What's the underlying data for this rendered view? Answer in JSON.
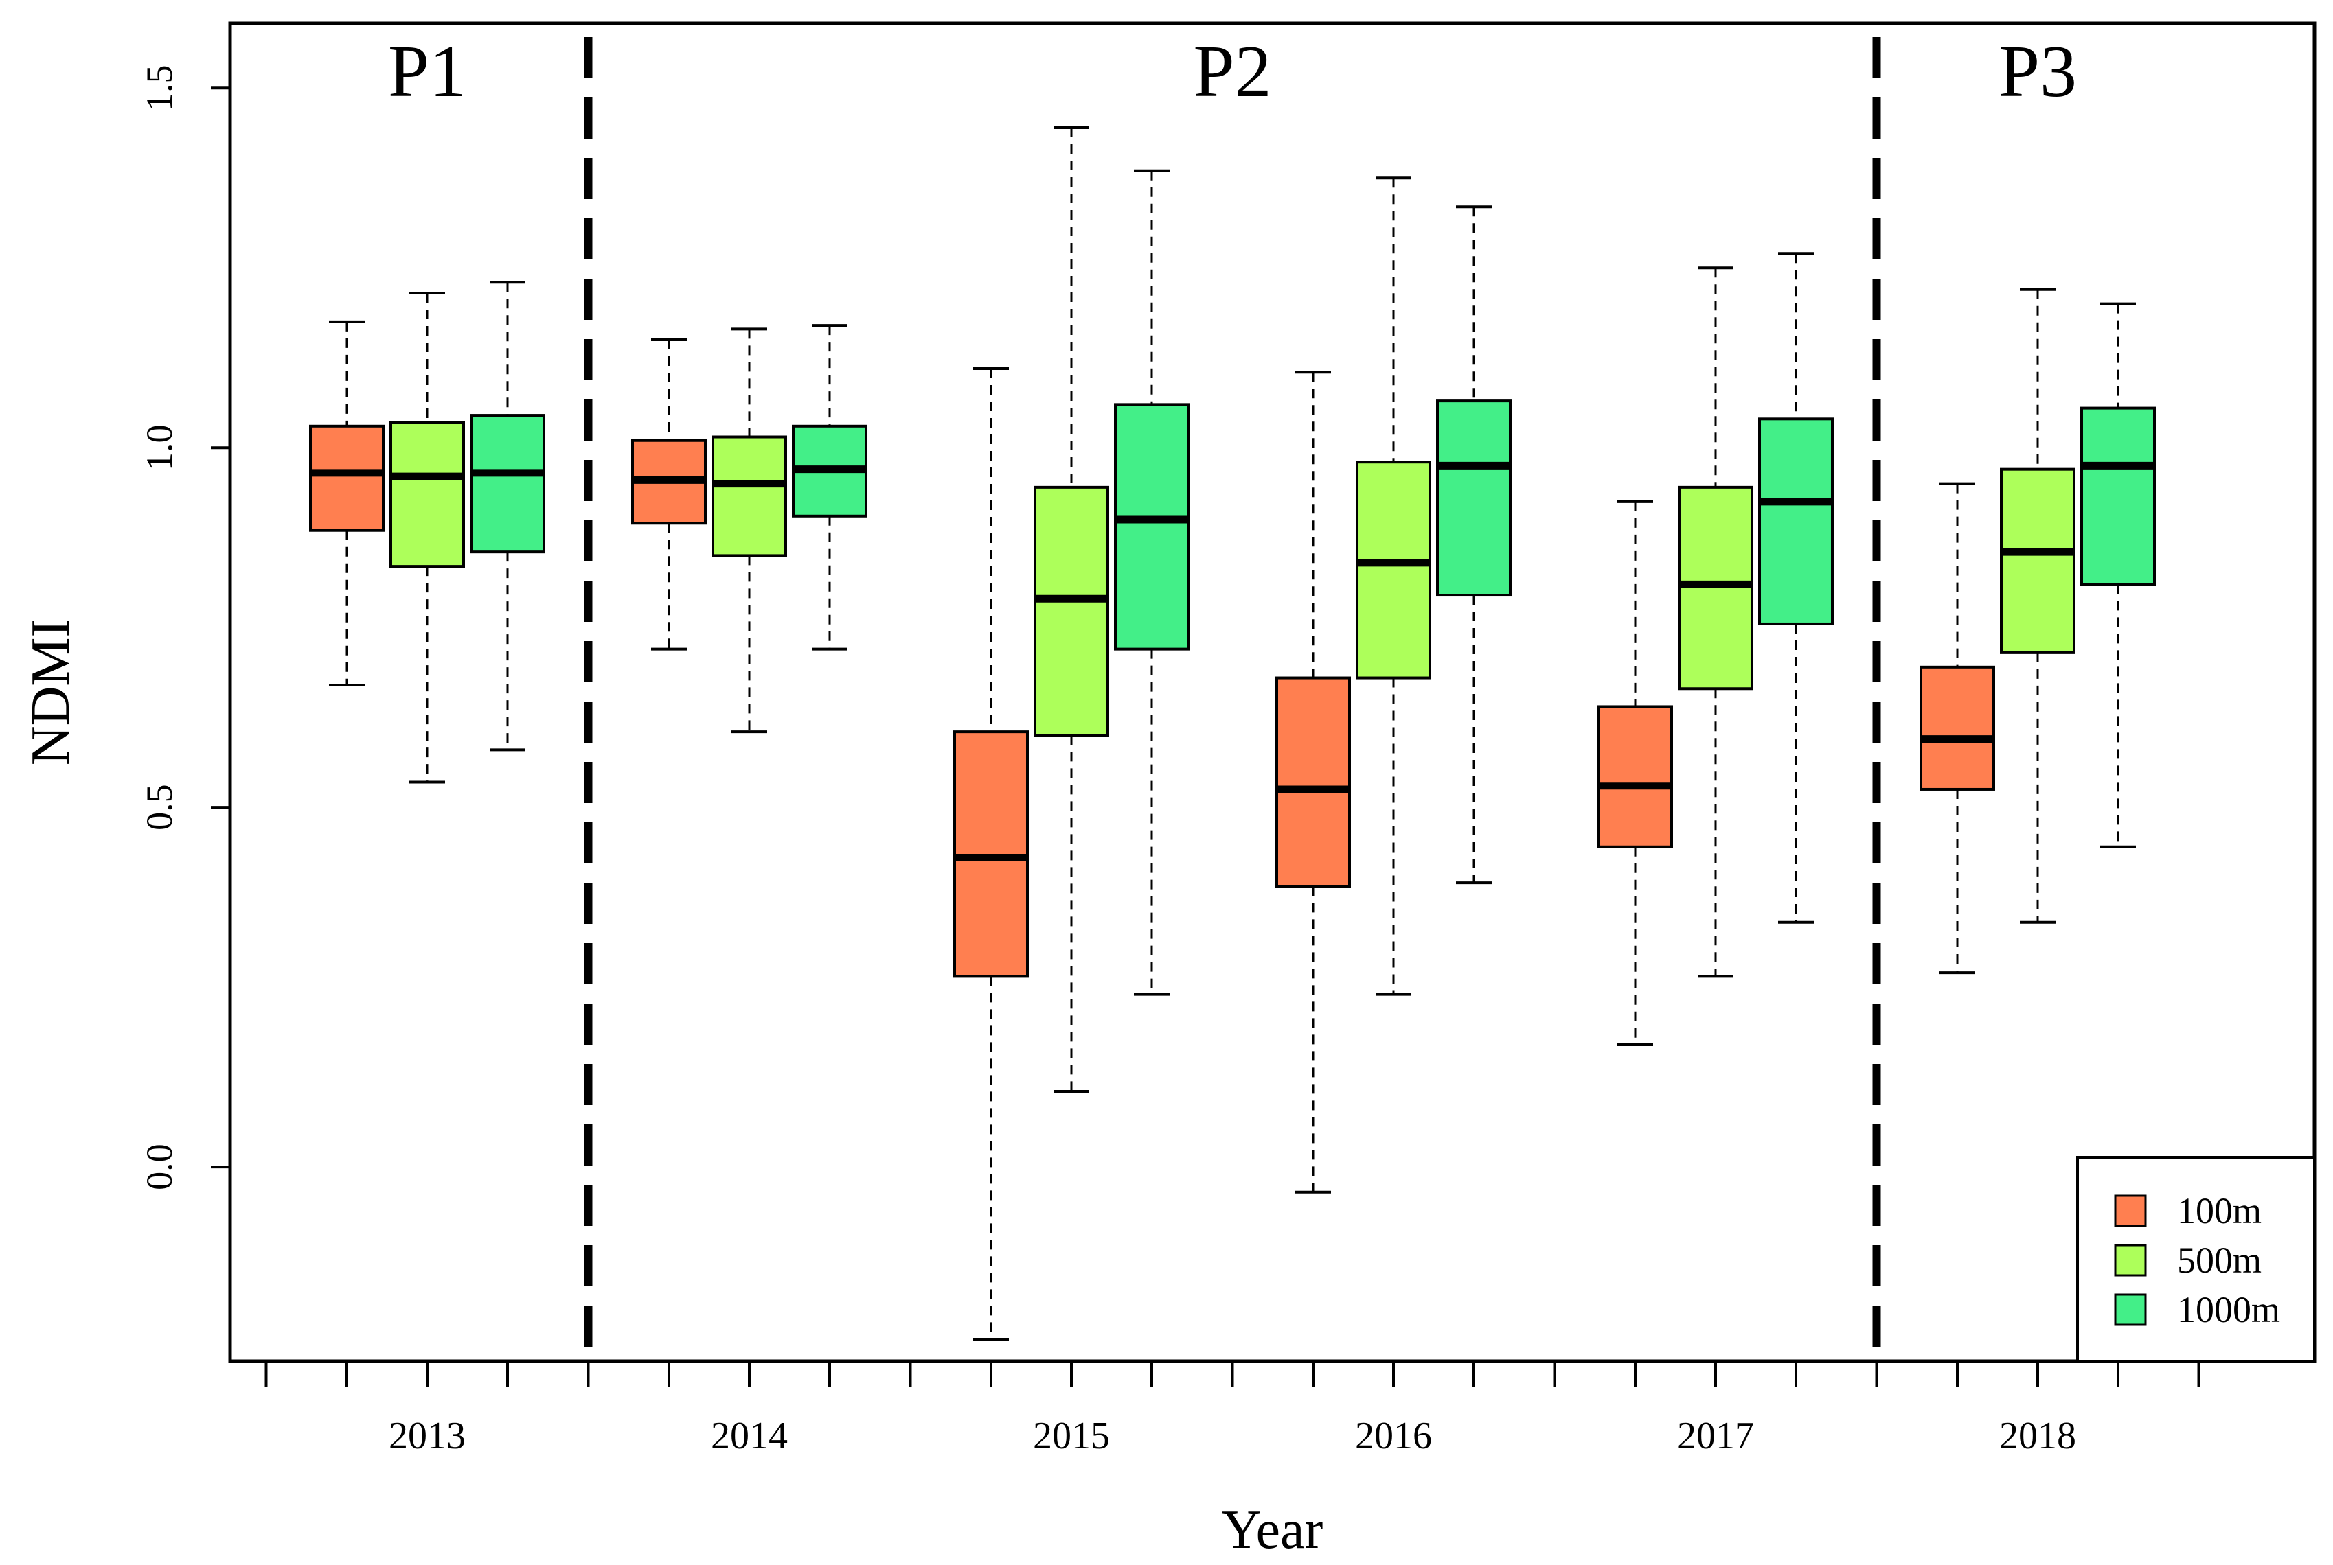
{
  "chart_data": {
    "type": "boxplot",
    "title": "",
    "xlabel": "Year",
    "ylabel": "NDMI",
    "ylim": [
      -0.27,
      1.59
    ],
    "yticks": [
      0.0,
      0.5,
      1.0,
      1.5
    ],
    "ytick_labels": [
      "0.0",
      "0.5",
      "1.0",
      "1.5"
    ],
    "categories": [
      "2013",
      "2014",
      "2015",
      "2016",
      "2017",
      "2018"
    ],
    "colors": {
      "100m": "#ff7f50",
      "500m": "#adff5a",
      "1000m": "#43ef88"
    },
    "series": [
      {
        "name": "100m",
        "boxes": [
          {
            "whisker_low": 0.67,
            "q1": 0.885,
            "median": 0.965,
            "q3": 1.03,
            "whisker_high": 1.175
          },
          {
            "whisker_low": 0.72,
            "q1": 0.895,
            "median": 0.955,
            "q3": 1.01,
            "whisker_high": 1.15
          },
          {
            "whisker_low": -0.24,
            "q1": 0.265,
            "median": 0.43,
            "q3": 0.605,
            "whisker_high": 1.11
          },
          {
            "whisker_low": -0.035,
            "q1": 0.39,
            "median": 0.525,
            "q3": 0.68,
            "whisker_high": 1.105
          },
          {
            "whisker_low": 0.17,
            "q1": 0.445,
            "median": 0.53,
            "q3": 0.64,
            "whisker_high": 0.925
          },
          {
            "whisker_low": 0.27,
            "q1": 0.525,
            "median": 0.595,
            "q3": 0.695,
            "whisker_high": 0.95
          }
        ]
      },
      {
        "name": "500m",
        "boxes": [
          {
            "whisker_low": 0.535,
            "q1": 0.835,
            "median": 0.96,
            "q3": 1.035,
            "whisker_high": 1.215
          },
          {
            "whisker_low": 0.605,
            "q1": 0.85,
            "median": 0.95,
            "q3": 1.015,
            "whisker_high": 1.165
          },
          {
            "whisker_low": 0.105,
            "q1": 0.6,
            "median": 0.79,
            "q3": 0.945,
            "whisker_high": 1.445
          },
          {
            "whisker_low": 0.24,
            "q1": 0.68,
            "median": 0.84,
            "q3": 0.98,
            "whisker_high": 1.375
          },
          {
            "whisker_low": 0.265,
            "q1": 0.665,
            "median": 0.81,
            "q3": 0.945,
            "whisker_high": 1.25
          },
          {
            "whisker_low": 0.34,
            "q1": 0.715,
            "median": 0.855,
            "q3": 0.97,
            "whisker_high": 1.22
          }
        ]
      },
      {
        "name": "1000m",
        "boxes": [
          {
            "whisker_low": 0.58,
            "q1": 0.855,
            "median": 0.965,
            "q3": 1.045,
            "whisker_high": 1.23
          },
          {
            "whisker_low": 0.72,
            "q1": 0.905,
            "median": 0.97,
            "q3": 1.03,
            "whisker_high": 1.17
          },
          {
            "whisker_low": 0.24,
            "q1": 0.72,
            "median": 0.9,
            "q3": 1.06,
            "whisker_high": 1.385
          },
          {
            "whisker_low": 0.395,
            "q1": 0.795,
            "median": 0.975,
            "q3": 1.065,
            "whisker_high": 1.335
          },
          {
            "whisker_low": 0.34,
            "q1": 0.755,
            "median": 0.925,
            "q3": 1.04,
            "whisker_high": 1.27
          },
          {
            "whisker_low": 0.445,
            "q1": 0.81,
            "median": 0.975,
            "q3": 1.055,
            "whisker_high": 1.2
          }
        ]
      }
    ],
    "periods": [
      {
        "label": "P1",
        "categories": [
          "2013"
        ]
      },
      {
        "label": "P2",
        "categories": [
          "2014",
          "2015",
          "2016",
          "2017"
        ]
      },
      {
        "label": "P3",
        "categories": [
          "2018"
        ]
      }
    ],
    "legend": {
      "position": "bottom-right",
      "entries": [
        "100m",
        "500m",
        "1000m"
      ]
    }
  }
}
